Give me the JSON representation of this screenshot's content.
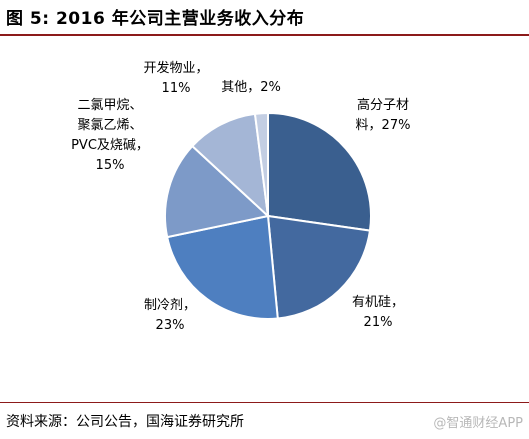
{
  "title": "图 5:  2016 年公司主营业务收入分布",
  "source": "资料来源：公司公告，国海证券研究所",
  "watermark": "@智通财经APP",
  "chart_data": {
    "type": "pie",
    "title": "图 5:  2016 年公司主营业务收入分布",
    "slices": [
      {
        "lines": [
          "高分子材",
          "料，27%"
        ],
        "value": 27,
        "color": "#3a5f8f"
      },
      {
        "lines": [
          "有机硅，",
          "21%"
        ],
        "value": 21,
        "color": "#43699f"
      },
      {
        "lines": [
          "制冷剂，",
          "23%"
        ],
        "value": 23,
        "color": "#4e7fc0"
      },
      {
        "lines": [
          "二氯甲烷、",
          "聚氯乙烯、",
          "PVC及烧碱，",
          "15%"
        ],
        "value": 15,
        "color": "#7d9ac8"
      },
      {
        "lines": [
          "开发物业，",
          "11%"
        ],
        "value": 11,
        "color": "#a4b6d6"
      },
      {
        "lines": [
          "其他，2%"
        ],
        "value": 2,
        "color": "#c3cee3"
      }
    ],
    "legend": "none"
  }
}
